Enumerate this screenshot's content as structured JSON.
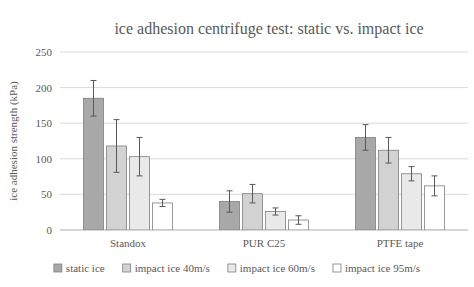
{
  "chart_data": {
    "type": "bar",
    "title": "ice adhesion centrifuge test: static vs. impact ice",
    "y_label": "ice adhesion strength (kPa)",
    "categories": [
      "Standox",
      "PUR C25",
      "PTFE tape"
    ],
    "series": [
      {
        "name": "static ice",
        "color": "#a8a8a8",
        "values": [
          185,
          40,
          130
        ],
        "errors": [
          25,
          15,
          18
        ]
      },
      {
        "name": "impact ice 40m/s",
        "color": "#d2d2d2",
        "values": [
          118,
          51,
          112
        ],
        "errors": [
          37,
          13,
          18
        ]
      },
      {
        "name": "impact ice 60m/s",
        "color": "#e9e9e9",
        "values": [
          103,
          26,
          79
        ],
        "errors": [
          27,
          5,
          10
        ]
      },
      {
        "name": "impact ice 95m/s",
        "color": "#ffffff",
        "values": [
          38,
          14,
          62
        ],
        "errors": [
          5,
          6,
          14
        ]
      }
    ],
    "ylim": [
      0,
      250
    ],
    "yticks": [
      0,
      50,
      100,
      150,
      200,
      250
    ],
    "grid": true,
    "legend": "bottom"
  }
}
